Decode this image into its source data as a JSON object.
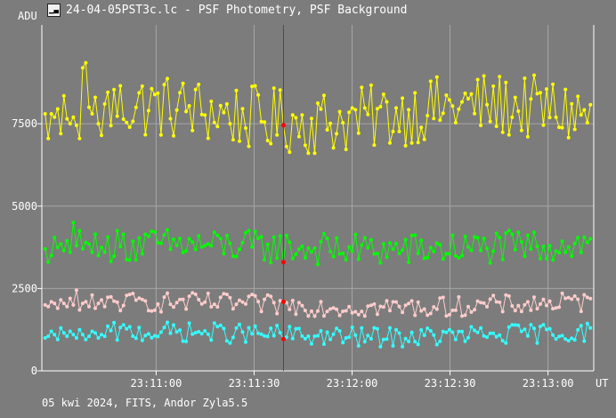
{
  "window": {
    "icon": "light-curve-icon",
    "title": "24-04-05PST3c.lc - PSF Photometry, PSF Background"
  },
  "footer": {
    "text": "05 kwi 2024, FITS, Andor Zyla5.5"
  },
  "colors": {
    "background": "#7c7c7c",
    "grid": "#a6a6a6",
    "axis": "#ffffff",
    "cursor": "#ff0000",
    "cursor_marker": "#ff0000"
  },
  "chart_data": {
    "type": "line",
    "ylabel": "ADU",
    "xlabel": "UT",
    "ylim": [
      0,
      10500
    ],
    "xlim": [
      "23:10:25",
      "23:13:14"
    ],
    "y_ticks": [
      0,
      2500,
      5000,
      7500
    ],
    "y_tick_labels": [
      "0",
      "2500",
      "5000",
      "7500"
    ],
    "x_ticks": [
      "23:11:00",
      "23:11:30",
      "23:12:00",
      "23:12:30",
      "23:13:00"
    ],
    "x_tick_labels": [
      "23:11:00",
      "23:11:30",
      "23:12:00",
      "23:12:30",
      "23:13:00"
    ],
    "grid": true,
    "markers": true,
    "cursor_time": "23:11:39",
    "series": [
      {
        "color": "#ffff00",
        "mean": 7800,
        "amplitude": 1000,
        "point_count": 175,
        "values_sample": [
          7800,
          7050,
          7800,
          7700,
          7950,
          7200,
          8350,
          7650,
          7500,
          7700,
          7450,
          7050,
          9200,
          9350,
          8000,
          7800,
          8300,
          7500,
          7150,
          8100
        ]
      },
      {
        "color": "#00ff00",
        "mean": 3750,
        "amplitude": 500,
        "point_count": 175,
        "values_sample": [
          3700,
          3300,
          3500,
          4050,
          3750,
          3850,
          3650,
          3950,
          3600,
          4500,
          3800,
          4250,
          3700,
          3900,
          3850,
          3600,
          4150,
          3500,
          3750,
          3600
        ]
      },
      {
        "color": "#ffcccc",
        "mean": 2000,
        "amplitude": 300,
        "point_count": 175,
        "values_sample": [
          2000,
          1950,
          2100,
          2050,
          1900,
          2150,
          2050,
          1950,
          2200,
          2000,
          2450,
          1850,
          2050,
          2100,
          1950,
          2300,
          1900,
          2050,
          2150,
          1950
        ]
      },
      {
        "color": "#33ffff",
        "mean": 1100,
        "amplitude": 300,
        "point_count": 175,
        "values_sample": [
          1000,
          1050,
          1200,
          1100,
          950,
          1300,
          1150,
          1050,
          1200,
          1100,
          1000,
          1250,
          1100,
          950,
          1050,
          1200,
          1150,
          1000,
          1100,
          1050
        ]
      }
    ]
  }
}
